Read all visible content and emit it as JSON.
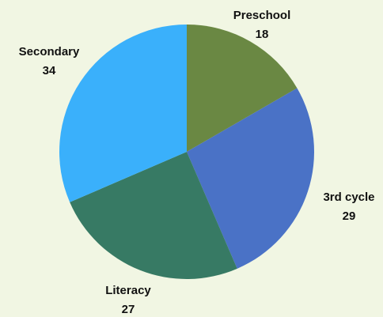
{
  "chart_data": {
    "type": "pie",
    "start_angle_deg": 0,
    "direction": "clockwise",
    "legend": "none",
    "slices": [
      {
        "label": "Preschool",
        "value": 18,
        "color": "#6a8843"
      },
      {
        "label": "3rd cycle",
        "value": 29,
        "color": "#4a72c6"
      },
      {
        "label": "Literacy",
        "value": 27,
        "color": "#377a64"
      },
      {
        "label": "Secondary",
        "value": 34,
        "color": "#3ab0fb"
      }
    ]
  }
}
